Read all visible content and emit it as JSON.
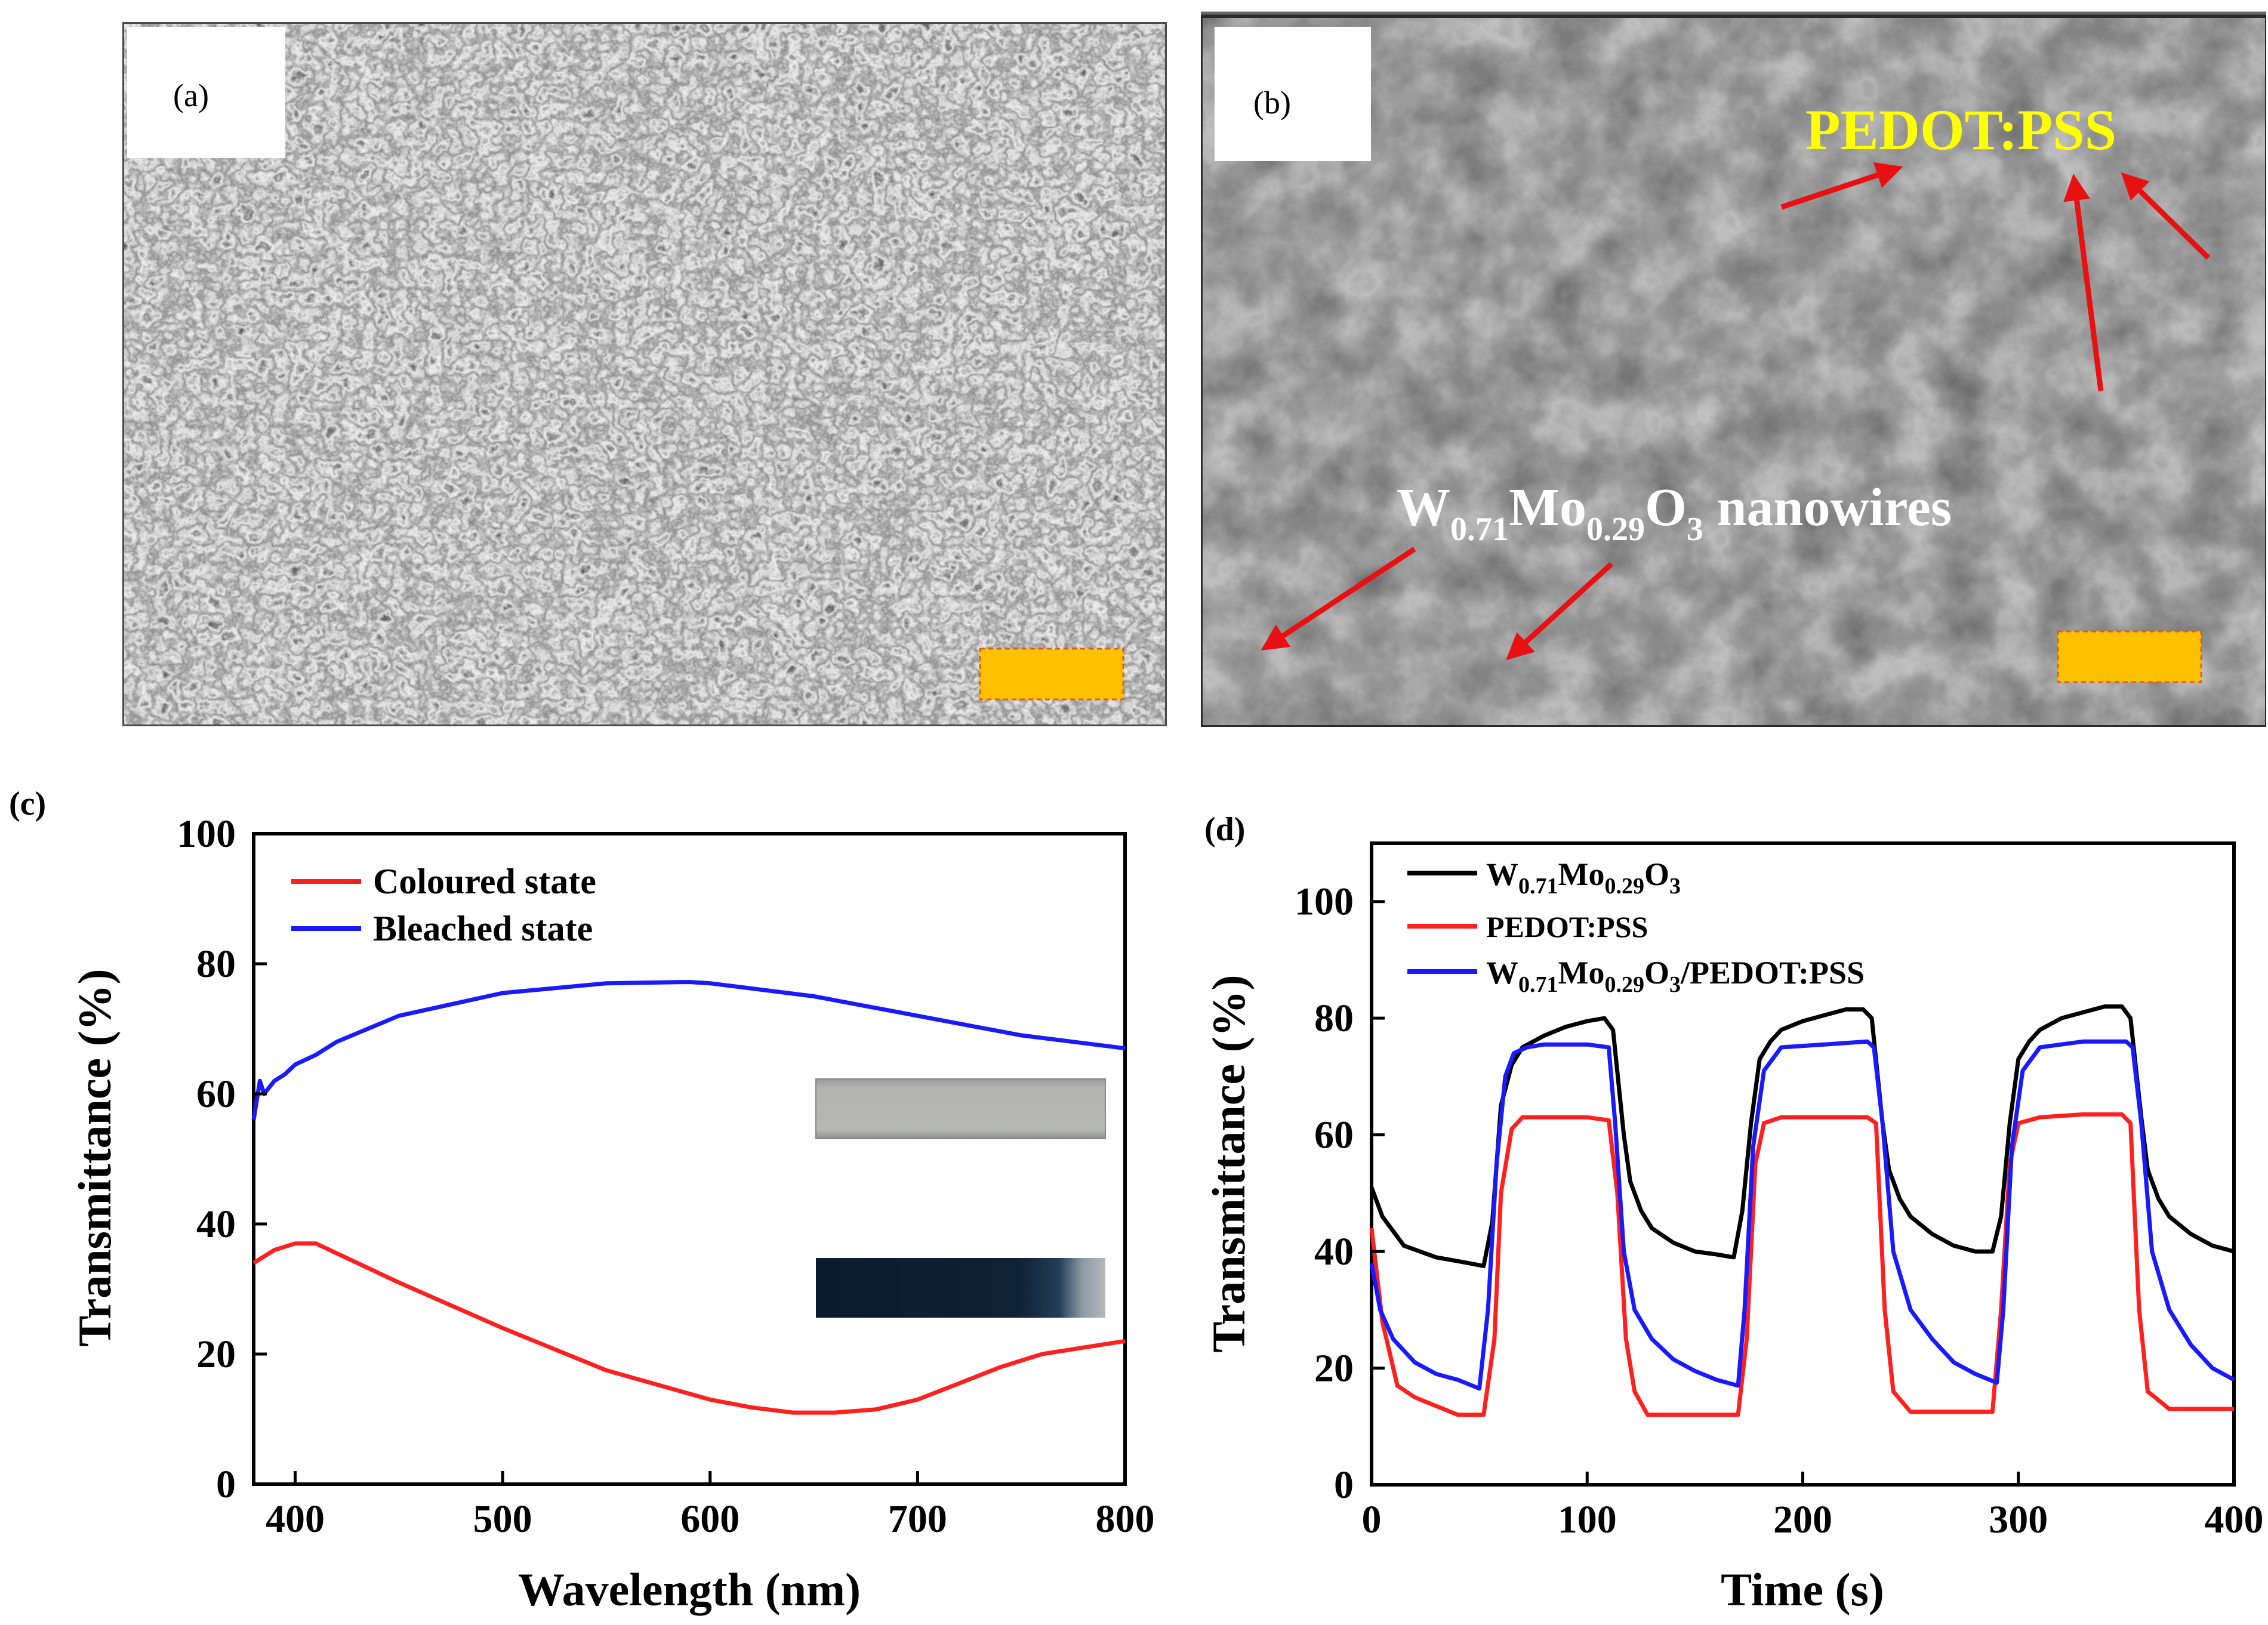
{
  "panel_a": {
    "label": "(a)"
  },
  "panel_b": {
    "label": "(b)",
    "annotation_pedot": "PEDOT:PSS",
    "annotation_nanowires": {
      "base1": "W",
      "sub1": "0.71",
      "base2": "Mo",
      "sub2": "0.29",
      "base3": "O",
      "sub3": "3",
      "suffix": " nanowires"
    }
  },
  "colors": {
    "red": "#ff2020",
    "blue": "#1a1aff",
    "black": "#000000",
    "scalebar": "#ffc000",
    "scalebar_border": "#e06010",
    "annotation_yellow": "#ffff00",
    "arrow_red": "#e81010"
  },
  "chart_data": [
    {
      "panel": "(c)",
      "type": "line",
      "title": "",
      "xlabel": "Wavelength (nm)",
      "ylabel": "Transmittance (%)",
      "xlim": [
        380,
        800
      ],
      "ylim": [
        0,
        100
      ],
      "xticks": [
        400,
        500,
        600,
        700,
        800
      ],
      "yticks": [
        0,
        20,
        40,
        60,
        80,
        100
      ],
      "legend_position": "top-left",
      "series": [
        {
          "name": "Coloured state",
          "color": "#ff2020",
          "x": [
            380,
            390,
            400,
            410,
            420,
            450,
            500,
            550,
            600,
            620,
            640,
            660,
            680,
            700,
            720,
            740,
            760,
            780,
            800
          ],
          "y": [
            34,
            36,
            37,
            37,
            35.5,
            31,
            24,
            17.5,
            13,
            11.8,
            11,
            11,
            11.5,
            13,
            15.5,
            18,
            20,
            21,
            22
          ]
        },
        {
          "name": "Bleached state",
          "color": "#1a1aff",
          "x": [
            380,
            383,
            385,
            390,
            395,
            400,
            410,
            420,
            450,
            500,
            550,
            590,
            600,
            650,
            700,
            750,
            800
          ],
          "y": [
            56,
            62,
            60,
            62,
            63,
            64.5,
            66,
            68,
            72,
            75.5,
            77,
            77.2,
            77,
            75,
            72,
            69,
            67
          ]
        }
      ],
      "inset_labels": []
    },
    {
      "panel": "(d)",
      "type": "line",
      "title": "",
      "xlabel": "Time (s)",
      "ylabel": "Transmittance (%)",
      "xlim": [
        0,
        400
      ],
      "ylim": [
        0,
        110
      ],
      "xticks": [
        0,
        100,
        200,
        300,
        400
      ],
      "yticks": [
        0,
        20,
        40,
        60,
        80,
        100
      ],
      "legend_position": "top-left",
      "series": [
        {
          "name": "W0.71Mo0.29O3",
          "legend_parts": [
            "W",
            "0.71",
            "Mo",
            "0.29",
            "O",
            "3",
            ""
          ],
          "color": "#000000",
          "x": [
            0,
            5,
            15,
            30,
            45,
            52,
            56,
            60,
            65,
            70,
            80,
            90,
            100,
            108,
            112,
            117,
            120,
            125,
            130,
            140,
            150,
            160,
            168,
            172,
            176,
            180,
            185,
            190,
            200,
            210,
            220,
            228,
            232,
            237,
            240,
            245,
            250,
            260,
            270,
            280,
            288,
            292,
            296,
            300,
            305,
            310,
            320,
            330,
            340,
            348,
            352,
            357,
            360,
            365,
            370,
            380,
            390,
            400
          ],
          "y": [
            51,
            46,
            41,
            39,
            38,
            37.5,
            45,
            65,
            72,
            75,
            77,
            78.5,
            79.5,
            80,
            78,
            60,
            52,
            47,
            44,
            41.5,
            40,
            39.5,
            39,
            47,
            62,
            73,
            76,
            78,
            79.5,
            80.5,
            81.5,
            81.5,
            80,
            62,
            54,
            49,
            46,
            43,
            41,
            40,
            40,
            46,
            62,
            73,
            76,
            78,
            80,
            81,
            82,
            82,
            80,
            63,
            54,
            49,
            46,
            43,
            41,
            40
          ]
        },
        {
          "name": "PEDOT:PSS",
          "legend_parts": [
            "PEDOT:PSS"
          ],
          "color": "#ff2020",
          "x": [
            0,
            5,
            12,
            20,
            30,
            40,
            52,
            57,
            60,
            65,
            70,
            80,
            100,
            110,
            114,
            118,
            122,
            128,
            140,
            160,
            170,
            174,
            178,
            182,
            190,
            210,
            230,
            234,
            238,
            242,
            250,
            270,
            288,
            292,
            296,
            300,
            310,
            330,
            348,
            352,
            356,
            360,
            370,
            390,
            400
          ],
          "y": [
            44,
            28,
            17,
            15,
            13.5,
            12,
            12,
            25,
            50,
            61,
            63,
            63,
            63,
            62.5,
            50,
            25,
            16,
            12,
            12,
            12,
            12,
            25,
            55,
            62,
            63,
            63,
            63,
            62,
            30,
            16,
            12.5,
            12.5,
            12.5,
            30,
            55,
            62,
            63,
            63.5,
            63.5,
            62,
            30,
            16,
            13,
            13,
            13
          ]
        },
        {
          "name": "W0.71Mo0.29O3/PEDOT:PSS",
          "legend_parts": [
            "W",
            "0.71",
            "Mo",
            "0.29",
            "O",
            "3",
            "/PEDOT:PSS"
          ],
          "color": "#1a1aff",
          "x": [
            0,
            4,
            10,
            20,
            30,
            40,
            50,
            54,
            58,
            62,
            66,
            72,
            80,
            100,
            110,
            113,
            117,
            122,
            130,
            140,
            150,
            160,
            170,
            173,
            177,
            182,
            190,
            210,
            230,
            233,
            237,
            242,
            250,
            260,
            270,
            280,
            290,
            293,
            297,
            302,
            310,
            330,
            350,
            353,
            357,
            362,
            370,
            380,
            390,
            400
          ],
          "y": [
            38,
            30,
            25,
            21,
            19,
            18,
            16.5,
            30,
            55,
            70,
            74,
            75,
            75.5,
            75.5,
            75,
            62,
            40,
            30,
            25,
            21.5,
            19.5,
            18,
            17,
            30,
            58,
            71,
            75,
            75.5,
            76,
            75,
            62,
            40,
            30,
            25,
            21,
            19,
            17.5,
            30,
            58,
            71,
            75,
            76,
            76,
            75,
            62,
            40,
            30,
            24,
            20,
            18
          ]
        }
      ]
    }
  ]
}
